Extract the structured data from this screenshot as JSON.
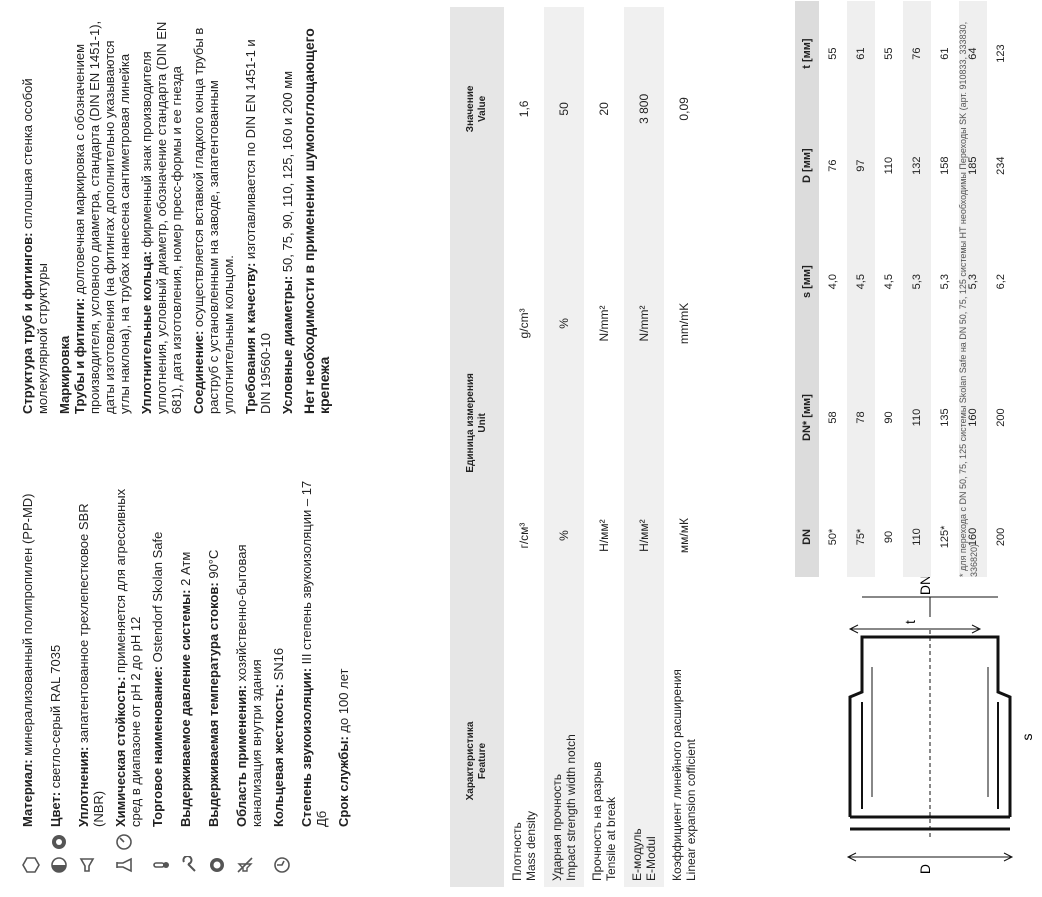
{
  "props": [
    {
      "icons": [
        "cube-icon"
      ],
      "label": "Материал:",
      "text": " минерализованный полипропилен (PP-MD)"
    },
    {
      "icons": [
        "half-circle-icon",
        "filled-circle-icon"
      ],
      "label": "Цвет:",
      "text": " светло-серый RAL 7035"
    },
    {
      "icons": [
        "megaphone-icon"
      ],
      "label": "Уплотнения:",
      "text": " запатентованное трехлепестковое SBR (NBR)"
    },
    {
      "icons": [
        "flask-icon",
        "pressure-gauge-icon"
      ],
      "label": "Химическая стойкость:",
      "text": " применяется для агрессивных сред в диапазоне от pH 2 до pH 12"
    },
    {
      "icons": [
        "thermometer-icon"
      ],
      "label": "Торговое наименование:",
      "text": " Ostendorf Skolan Safe"
    },
    {
      "icons": [
        "wrench-icon"
      ],
      "label": "Выдерживаемое давление системы:",
      "text": " 2 Атм"
    },
    {
      "icons": [
        "ring-icon"
      ],
      "label": "Выдерживаемая температура стоков:",
      "text": " 90°C"
    },
    {
      "icons": [
        "no-sound-icon"
      ],
      "label": "Область применения:",
      "text": " хозяйственно-бытовая канализация внутри здания"
    },
    {
      "icons": [
        "clock-icon"
      ],
      "label": "Кольцевая жесткость:",
      "text": " SN16"
    },
    {
      "icons": [],
      "label": "Степень звукоизоляции:",
      "text": " III степень звукоизоляции – 17 Дб"
    },
    {
      "icons": [],
      "label": "Срок службы:",
      "text": " до 100 лет"
    }
  ],
  "feature_table": {
    "headers": [
      "Характеристика\nFeature",
      "Единица измерения\nUnit",
      "",
      "Значение\nValue"
    ],
    "rows": [
      [
        "Плотность\nMass density",
        "г/см³",
        "g/cm³",
        "1,6"
      ],
      [
        "Ударная прочность\nImpact strength width notch",
        "%",
        "%",
        "50"
      ],
      [
        "Прочность на разрыв\nTensile at break",
        "Н/мм²",
        "N/mm²",
        "20"
      ],
      [
        "E-модуль\nE-Modul",
        "Н/мм²",
        "N/mm²",
        "3 800"
      ],
      [
        "Коэффициент линейного расширения\nLinear expansion cofficient",
        "мм/мК",
        "mm/mK",
        "0,09"
      ]
    ]
  },
  "right_icons": [
    "target-icon",
    "tag-icon",
    "link-icon",
    "hand-icon",
    "leaf-icon",
    "info-icon"
  ],
  "right": {
    "p1_label": "Структура труб и фитингов:",
    "p1_text": " сплошная стенка особой молекулярной структуры",
    "heading": "Маркировка",
    "p2_label": "Трубы и фитинги:",
    "p2_text": " долговечная маркировка с обозначением производителя, условного диаметра, стандарта (DIN EN 1451-1), даты изготовления (на фитингах дополнительно указываются углы наклона), на трубах нанесена сантиметровая линейка",
    "p3_label": "Уплотнительные кольца:",
    "p3_text": " фирменный знак производителя уплотнения, условный диаметр, обозначение стандарта (DIN EN 681), дата изготовления, номер пресс-формы и ее гнезда",
    "p4_label": "Соединение:",
    "p4_text": " осуществляется вставкой гладкого конца трубы в раструб с установленным на заводе, запатентованным уплотнительным кольцом.",
    "p5_label": "Требования к качеству:",
    "p5_text": " изготавливается по DIN EN 1451-1 и DIN 19560-10",
    "p6_label": "Условные диаметры:",
    "p6_text": " 50, 75, 90, 110, 125, 160 и 200 мм",
    "p7": "Нет необходимости в применении шумопоглощающего крепежа"
  },
  "dim_table": {
    "headers": [
      "DN",
      "DN* [мм]",
      "s [мм]",
      "D [мм]",
      "t [мм]"
    ],
    "rows": [
      [
        "50*",
        "58",
        "4,0",
        "76",
        "55"
      ],
      [
        "75*",
        "78",
        "4,5",
        "97",
        "61"
      ],
      [
        "90",
        "90",
        "4,5",
        "110",
        "55"
      ],
      [
        "110",
        "110",
        "5,3",
        "132",
        "76"
      ],
      [
        "125*",
        "135",
        "5,3",
        "158",
        "61"
      ],
      [
        "160",
        "160",
        "5,3",
        "185",
        "64"
      ],
      [
        "200",
        "200",
        "6,2",
        "234",
        "123"
      ]
    ]
  },
  "footnote": "* для перехода с DN 50, 75, 125 системы Skolan Safe на DN 50, 75, 125 системы HT необходимы Переходы SK (арт. 910833, 333830, 336820)",
  "drawing": {
    "label_D": "D",
    "label_DN": "DN",
    "label_s": "s",
    "label_t": "t"
  }
}
